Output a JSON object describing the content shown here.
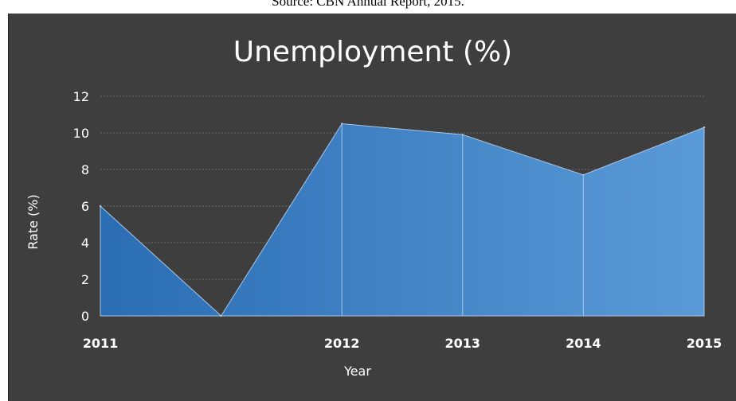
{
  "source_note": "Source: CBN Annual Report, 2015.",
  "colors": {
    "background": "#3e3e3e",
    "area_dark": "#2a6db3",
    "area_light": "#5a9ad8",
    "outline": "#a9c6e6",
    "gridline": "#6a6a6a",
    "text": "#ffffff"
  },
  "chart_data": {
    "type": "area",
    "title": "Unemployment (%)",
    "xlabel": "Year",
    "ylabel": "Rate (%)",
    "ylim": [
      0,
      12
    ],
    "yticks": [
      0,
      2,
      4,
      6,
      8,
      10,
      12
    ],
    "grid": "dotted horizontal",
    "legend": "none",
    "categories": [
      "2011",
      "",
      "2012",
      "2013",
      "2014",
      "2015"
    ],
    "series": [
      {
        "values": [
          6.0,
          0.0,
          10.5,
          9.9,
          7.7,
          10.3
        ]
      }
    ]
  }
}
